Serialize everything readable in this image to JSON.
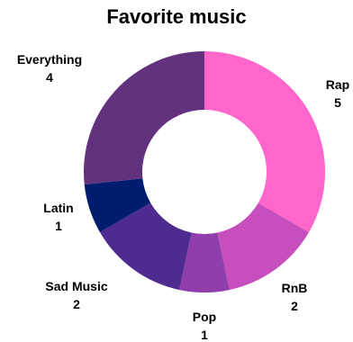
{
  "chart_data": {
    "type": "pie",
    "title": "Favorite music",
    "categories": [
      "Rap",
      "RnB",
      "Pop",
      "Sad Music",
      "Latin",
      "Everything"
    ],
    "values": [
      5,
      2,
      1,
      2,
      1,
      4
    ],
    "colors": [
      "#ff66cc",
      "#c64fbd",
      "#8f3eab",
      "#4e2b8f",
      "#001c6e",
      "#62327f"
    ],
    "donut": true,
    "legend": "labels"
  }
}
